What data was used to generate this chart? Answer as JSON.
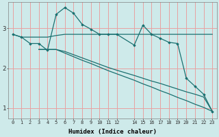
{
  "xlabel": "Humidex (Indice chaleur)",
  "ylabel": "",
  "background_color": "#ceeaea",
  "plot_bg_color": "#ceeaea",
  "line_color": "#1a7070",
  "grid_color": "#e8a0a0",
  "xlim": [
    -0.5,
    23.5
  ],
  "ylim": [
    0.75,
    3.65
  ],
  "xticks": [
    0,
    1,
    2,
    3,
    4,
    5,
    6,
    7,
    8,
    9,
    10,
    11,
    12,
    14,
    15,
    16,
    17,
    18,
    19,
    20,
    21,
    22,
    23
  ],
  "yticks": [
    1,
    2,
    3
  ],
  "line_flat": {
    "x": [
      0,
      1,
      2,
      3,
      4,
      5,
      6,
      7,
      8,
      9,
      10,
      11,
      12,
      14,
      15,
      16,
      17,
      18,
      19,
      20,
      21,
      22,
      23
    ],
    "y": [
      2.85,
      2.78,
      2.78,
      2.78,
      2.78,
      2.82,
      2.85,
      2.85,
      2.85,
      2.85,
      2.85,
      2.85,
      2.85,
      2.85,
      2.85,
      2.85,
      2.85,
      2.85,
      2.85,
      2.85,
      2.85,
      2.85,
      2.85
    ]
  },
  "line_peaked": {
    "x": [
      0,
      1,
      2,
      3,
      4,
      5,
      6,
      7,
      8,
      9,
      10,
      11,
      12,
      14,
      15,
      16,
      17,
      18,
      19,
      20,
      21,
      22,
      23
    ],
    "y": [
      2.85,
      2.78,
      2.62,
      2.62,
      2.45,
      3.35,
      3.52,
      3.38,
      3.1,
      2.98,
      2.85,
      2.85,
      2.85,
      2.58,
      3.08,
      2.85,
      2.75,
      2.65,
      2.62,
      1.75,
      1.55,
      1.35,
      0.92
    ]
  },
  "line_decline1": {
    "x": [
      3,
      4,
      5,
      6,
      7,
      8,
      9,
      10,
      11,
      12,
      14,
      15,
      16,
      17,
      18,
      19,
      20,
      21,
      22,
      23
    ],
    "y": [
      2.47,
      2.47,
      2.47,
      2.42,
      2.34,
      2.26,
      2.18,
      2.1,
      2.02,
      1.95,
      1.82,
      1.75,
      1.68,
      1.62,
      1.55,
      1.48,
      1.41,
      1.35,
      1.28,
      0.92
    ]
  },
  "line_decline2": {
    "x": [
      3,
      4,
      5,
      6,
      7,
      8,
      9,
      10,
      11,
      12,
      14,
      15,
      16,
      17,
      18,
      19,
      20,
      21,
      22,
      23
    ],
    "y": [
      2.47,
      2.47,
      2.47,
      2.38,
      2.29,
      2.2,
      2.12,
      2.03,
      1.94,
      1.86,
      1.7,
      1.61,
      1.53,
      1.44,
      1.36,
      1.27,
      1.19,
      1.1,
      1.02,
      0.92
    ]
  }
}
